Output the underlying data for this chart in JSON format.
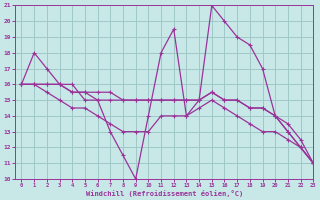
{
  "xlabel": "Windchill (Refroidissement éolien,°C)",
  "x": [
    0,
    1,
    2,
    3,
    4,
    5,
    6,
    7,
    8,
    9,
    10,
    11,
    12,
    13,
    14,
    15,
    16,
    17,
    18,
    19,
    20,
    21,
    22,
    23
  ],
  "line1": [
    16,
    18,
    17,
    16,
    16,
    15,
    15,
    13,
    11.5,
    10,
    14,
    18,
    19.5,
    14,
    15,
    21,
    20,
    19,
    18.5,
    17,
    14,
    13,
    12,
    11
  ],
  "line2": [
    16,
    16,
    16,
    16,
    15.5,
    15.5,
    15.5,
    15.5,
    15,
    15,
    15,
    15,
    15,
    15,
    15,
    15.5,
    15,
    15,
    14.5,
    14.5,
    14,
    13.5,
    12.5,
    11
  ],
  "line3": [
    16,
    16,
    16,
    16,
    15.5,
    15.5,
    15,
    15,
    15,
    15,
    15,
    15,
    15,
    15,
    15,
    15.5,
    15,
    15,
    14.5,
    14.5,
    14,
    13,
    12,
    11
  ],
  "line4": [
    16,
    16,
    15.5,
    15,
    14.5,
    14.5,
    14,
    13.5,
    13,
    13,
    13,
    14,
    14,
    14,
    14.5,
    15,
    14.5,
    14,
    13.5,
    13,
    13,
    12.5,
    12,
    11
  ],
  "color": "#993399",
  "bg_color": "#c8e8e8",
  "grid_color": "#a0c8c8",
  "ylim": [
    10,
    21
  ],
  "yticks": [
    10,
    11,
    12,
    13,
    14,
    15,
    16,
    17,
    18,
    19,
    20,
    21
  ],
  "xlim": [
    -0.5,
    23
  ],
  "xticks": [
    0,
    1,
    2,
    3,
    4,
    5,
    6,
    7,
    8,
    9,
    10,
    11,
    12,
    13,
    14,
    15,
    16,
    17,
    18,
    19,
    20,
    21,
    22,
    23
  ]
}
